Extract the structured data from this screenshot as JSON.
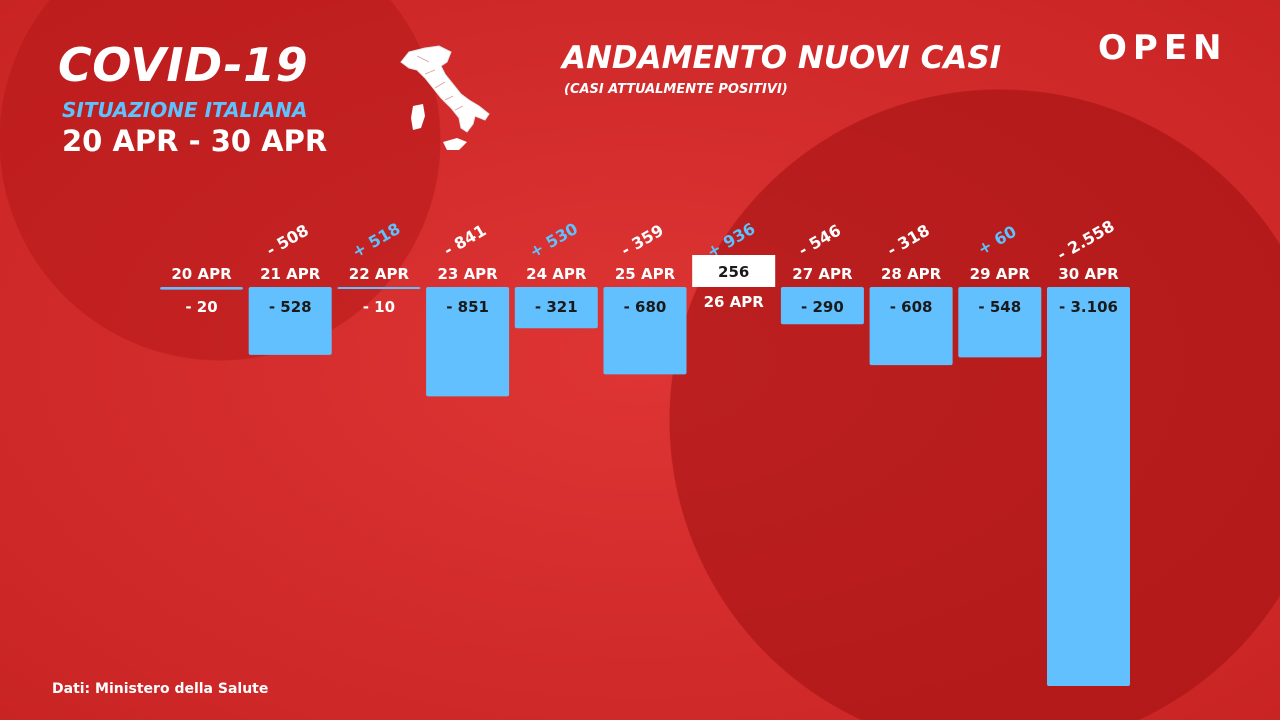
{
  "header": {
    "title": "COVID-19",
    "subtitle": "SITUAZIONE ITALIANA",
    "date_range": "20 APR - 30 APR"
  },
  "chart_title": "ANDAMENTO NUOVI CASI",
  "chart_subtitle": "(CASI ATTUALMENTE POSITIVI)",
  "brand": "OPEN",
  "source": "Dati: Ministero della Salute",
  "colors": {
    "background": "#d42a2a",
    "bar": "#62c0ff",
    "positive_delta": "#5ec2ff",
    "text": "#ffffff",
    "value_text": "#1a1a1a"
  },
  "icons": {
    "map": "italy-map-icon"
  },
  "chart_data": {
    "type": "bar",
    "title": "ANDAMENTO NUOVI CASI",
    "subtitle": "(CASI ATTUALMENTE POSITIVI)",
    "categories": [
      "20 APR",
      "21 APR",
      "22 APR",
      "23 APR",
      "24 APR",
      "25 APR",
      "26 APR",
      "27 APR",
      "28 APR",
      "29 APR",
      "30 APR"
    ],
    "values": [
      -20,
      -528,
      -10,
      -851,
      -321,
      -680,
      256,
      -290,
      -608,
      -548,
      -3106
    ],
    "value_labels": [
      "- 20",
      "- 528",
      "- 10",
      "- 851",
      "- 321",
      "- 680",
      "256",
      "- 290",
      "- 608",
      "- 548",
      "- 3.106"
    ],
    "delta_labels": [
      "",
      "- 508",
      "+ 518",
      "- 841",
      "+ 530",
      "- 359",
      "+ 936",
      "- 546",
      "- 318",
      "+ 60",
      "- 2.558"
    ],
    "delta_signs": [
      0,
      -1,
      1,
      -1,
      1,
      -1,
      1,
      -1,
      -1,
      1,
      -1
    ],
    "ylim": [
      -3106,
      256
    ],
    "grid": false
  }
}
